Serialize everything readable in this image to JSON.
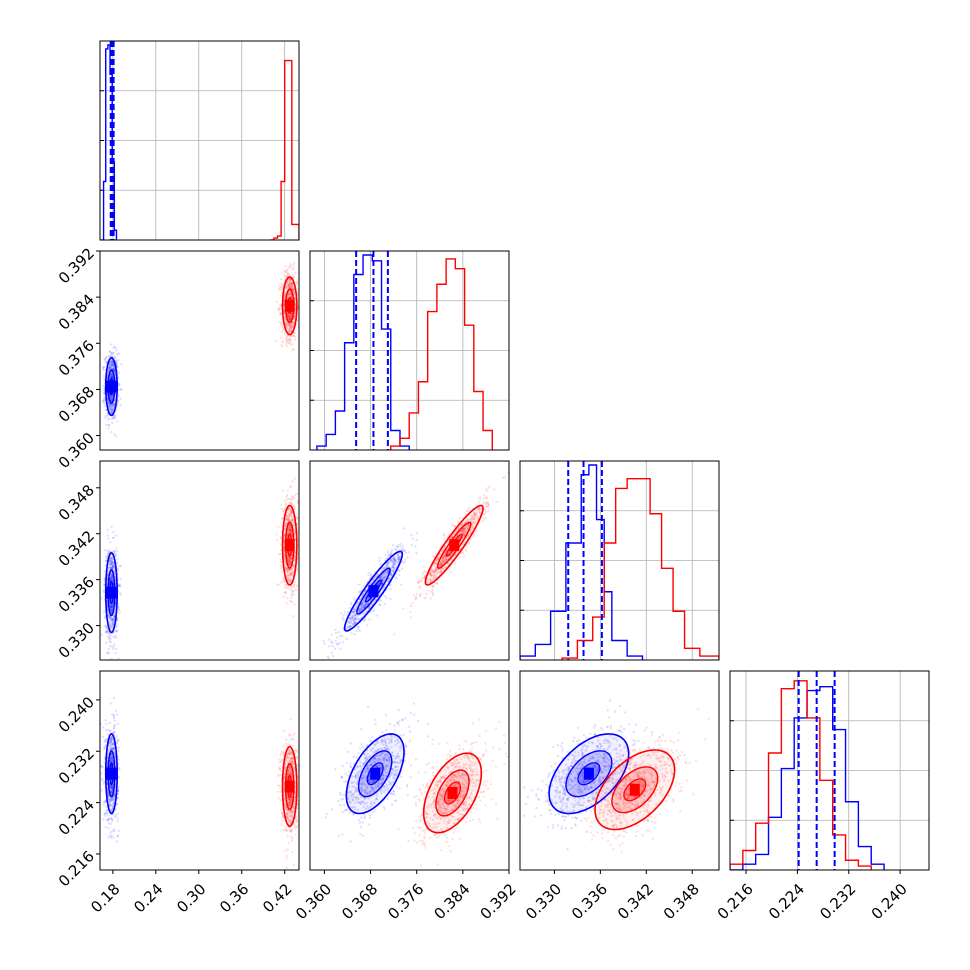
{
  "chart_data": {
    "type": "corner",
    "title": "",
    "grid": true,
    "series": [
      {
        "name": "",
        "color": "#0000ff"
      },
      {
        "name": "",
        "color": "#ff0000"
      }
    ],
    "parameters": [
      {
        "label": "",
        "range": [
          0.162,
          0.44
        ],
        "ticks": [
          "0.18",
          "0.24",
          "0.30",
          "0.36",
          "0.42"
        ]
      },
      {
        "label": "",
        "range": [
          0.3575,
          0.392
        ],
        "ticks": [
          "0.360",
          "0.368",
          "0.376",
          "0.384",
          "0.392"
        ]
      },
      {
        "label": "",
        "range": [
          0.3255,
          0.3515
        ],
        "ticks": [
          "0.330",
          "0.336",
          "0.342",
          "0.348"
        ]
      },
      {
        "label": "",
        "range": [
          0.2135,
          0.2445
        ],
        "ticks": [
          "0.216",
          "0.224",
          "0.232",
          "0.240"
        ]
      }
    ],
    "histograms": [
      {
        "param": 0,
        "blue": {
          "bins": [
            0.164,
            0.167,
            0.17,
            0.173,
            0.176,
            0.179,
            0.182,
            0.185
          ],
          "counts": [
            0,
            0.3,
            0.98,
            1.0,
            0.85,
            0.4,
            0.05,
            0
          ]
        },
        "red": {
          "bins": [
            0.4,
            0.405,
            0.41,
            0.415,
            0.42,
            0.425,
            0.43,
            0.435,
            0.44
          ],
          "counts": [
            0,
            0.01,
            0.02,
            0.3,
            0.92,
            0.92,
            0.08,
            0.08
          ]
        },
        "quantiles_blue": [
          0.177,
          0.179,
          0.181
        ]
      },
      {
        "param": 1,
        "blue": {
          "bins": [
            0.3587,
            0.3603,
            0.3619,
            0.3635,
            0.3651,
            0.3667,
            0.3683,
            0.3699,
            0.3715,
            0.3731,
            0.3747
          ],
          "counts": [
            0.02,
            0.08,
            0.2,
            0.55,
            0.9,
            1.0,
            0.97,
            0.62,
            0.1,
            0.02
          ]
        },
        "red": {
          "bins": [
            0.3715,
            0.3731,
            0.3747,
            0.3763,
            0.3779,
            0.3795,
            0.3811,
            0.3827,
            0.3843,
            0.3859,
            0.3875,
            0.3891
          ],
          "counts": [
            0.02,
            0.06,
            0.19,
            0.35,
            0.71,
            0.85,
            0.98,
            0.93,
            0.64,
            0.3,
            0.1
          ]
        },
        "quantiles_blue": [
          0.3655,
          0.3685,
          0.371
        ]
      },
      {
        "param": 2,
        "blue": {
          "bins": [
            0.3255,
            0.3275,
            0.3295,
            0.3315,
            0.3335,
            0.3345,
            0.3355,
            0.3365,
            0.3375,
            0.3395,
            0.3415
          ],
          "counts": [
            0.02,
            0.08,
            0.25,
            0.6,
            0.95,
            1.0,
            0.72,
            0.35,
            0.1,
            0.02
          ]
        },
        "red": {
          "bins": [
            0.331,
            0.333,
            0.335,
            0.3365,
            0.338,
            0.3395,
            0.341,
            0.3425,
            0.344,
            0.3455,
            0.347,
            0.349,
            0.3515
          ],
          "counts": [
            0.01,
            0.1,
            0.22,
            0.6,
            0.88,
            0.93,
            0.93,
            0.75,
            0.47,
            0.25,
            0.06,
            0.02
          ]
        },
        "quantiles_blue": [
          0.3318,
          0.3338,
          0.3362
        ]
      },
      {
        "param": 3,
        "blue": {
          "bins": [
            0.2135,
            0.2155,
            0.2175,
            0.2195,
            0.2215,
            0.2235,
            0.2255,
            0.2275,
            0.2295,
            0.2315,
            0.2335,
            0.2355,
            0.2375
          ],
          "counts": [
            0,
            0.03,
            0.08,
            0.27,
            0.52,
            0.78,
            0.92,
            0.94,
            0.72,
            0.35,
            0.12,
            0.03
          ]
        },
        "red": {
          "bins": [
            0.2135,
            0.2155,
            0.2175,
            0.2195,
            0.2215,
            0.2235,
            0.2255,
            0.2275,
            0.2295,
            0.2315,
            0.2335,
            0.2355
          ],
          "counts": [
            0.03,
            0.1,
            0.24,
            0.6,
            0.93,
            0.97,
            0.78,
            0.46,
            0.18,
            0.05,
            0.02
          ]
        },
        "quantiles_blue": [
          0.2242,
          0.227,
          0.2298
        ]
      }
    ],
    "posteriors_2d": [
      {
        "x": 0,
        "y": 1,
        "blue": {
          "mean": [
            0.178,
            0.3685
          ],
          "sd": [
            0.004,
            0.0025
          ],
          "rho": 0.0
        },
        "red": {
          "mean": [
            0.427,
            0.3825
          ],
          "sd": [
            0.005,
            0.0025
          ],
          "rho": 0.0
        }
      },
      {
        "x": 0,
        "y": 2,
        "blue": {
          "mean": [
            0.178,
            0.3343
          ],
          "sd": [
            0.004,
            0.0026
          ],
          "rho": 0.0
        },
        "red": {
          "mean": [
            0.427,
            0.3405
          ],
          "sd": [
            0.005,
            0.0026
          ],
          "rho": 0.0
        }
      },
      {
        "x": 1,
        "y": 2,
        "blue": {
          "mean": [
            0.3685,
            0.3345
          ],
          "sd": [
            0.0025,
            0.0026
          ],
          "rho": 0.93
        },
        "red": {
          "mean": [
            0.3825,
            0.3405
          ],
          "sd": [
            0.0025,
            0.0026
          ],
          "rho": 0.93
        }
      },
      {
        "x": 0,
        "y": 3,
        "blue": {
          "mean": [
            0.178,
            0.2285
          ],
          "sd": [
            0.004,
            0.0031
          ],
          "rho": 0.0
        },
        "red": {
          "mean": [
            0.427,
            0.2265
          ],
          "sd": [
            0.005,
            0.0031
          ],
          "rho": 0.0
        }
      },
      {
        "x": 1,
        "y": 3,
        "blue": {
          "mean": [
            0.3688,
            0.2285
          ],
          "sd": [
            0.0025,
            0.0031
          ],
          "rho": 0.55
        },
        "red": {
          "mean": [
            0.3822,
            0.2255
          ],
          "sd": [
            0.0025,
            0.0031
          ],
          "rho": 0.5
        }
      },
      {
        "x": 2,
        "y": 3,
        "blue": {
          "mean": [
            0.3345,
            0.2285
          ],
          "sd": [
            0.0026,
            0.0031
          ],
          "rho": 0.5
        },
        "red": {
          "mean": [
            0.3405,
            0.226
          ],
          "sd": [
            0.0026,
            0.0031
          ],
          "rho": 0.5
        }
      }
    ]
  }
}
